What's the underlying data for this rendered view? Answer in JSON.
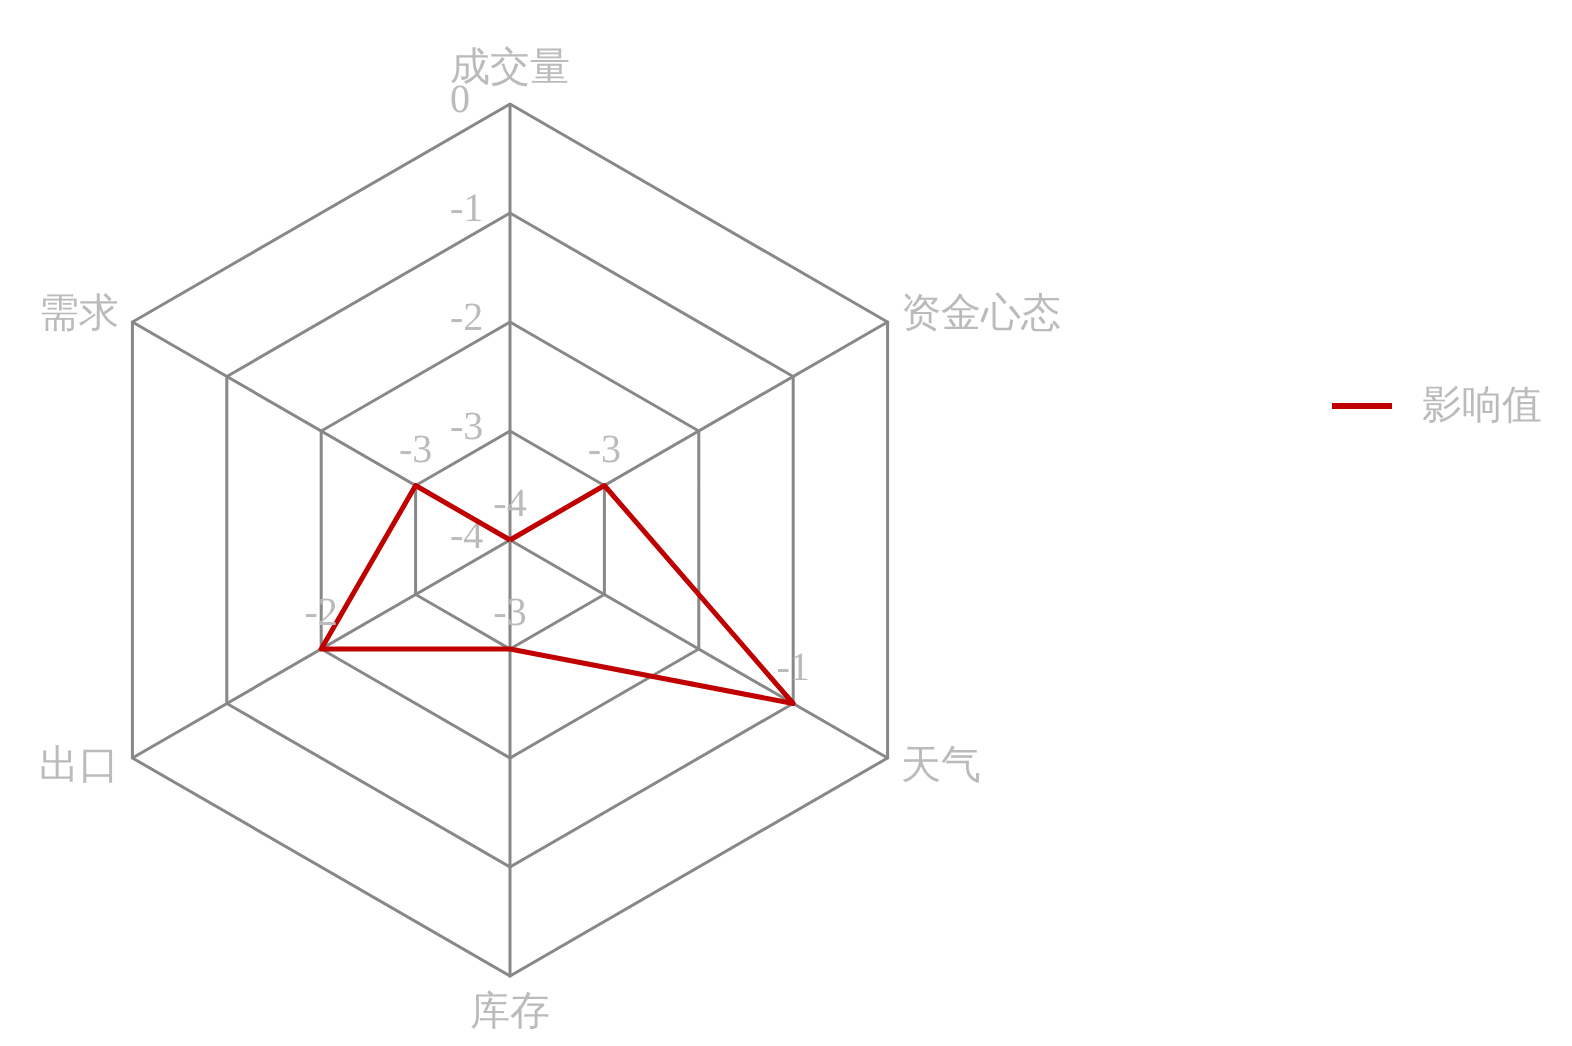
{
  "chart_data": {
    "type": "radar",
    "categories": [
      "成交量",
      "资金心态",
      "天气",
      "库存",
      "出口",
      "需求"
    ],
    "series": [
      {
        "name": "影响值",
        "color": "#c00000",
        "values": [
          -4,
          -3,
          -1,
          -3,
          -2,
          -3
        ]
      }
    ],
    "ylim": [
      -4,
      0
    ],
    "yticks": [
      -4,
      -3,
      -2,
      -1,
      0
    ],
    "data_labels": true,
    "legend": "right",
    "marker": "none",
    "line_style": "solid",
    "grid": true
  }
}
